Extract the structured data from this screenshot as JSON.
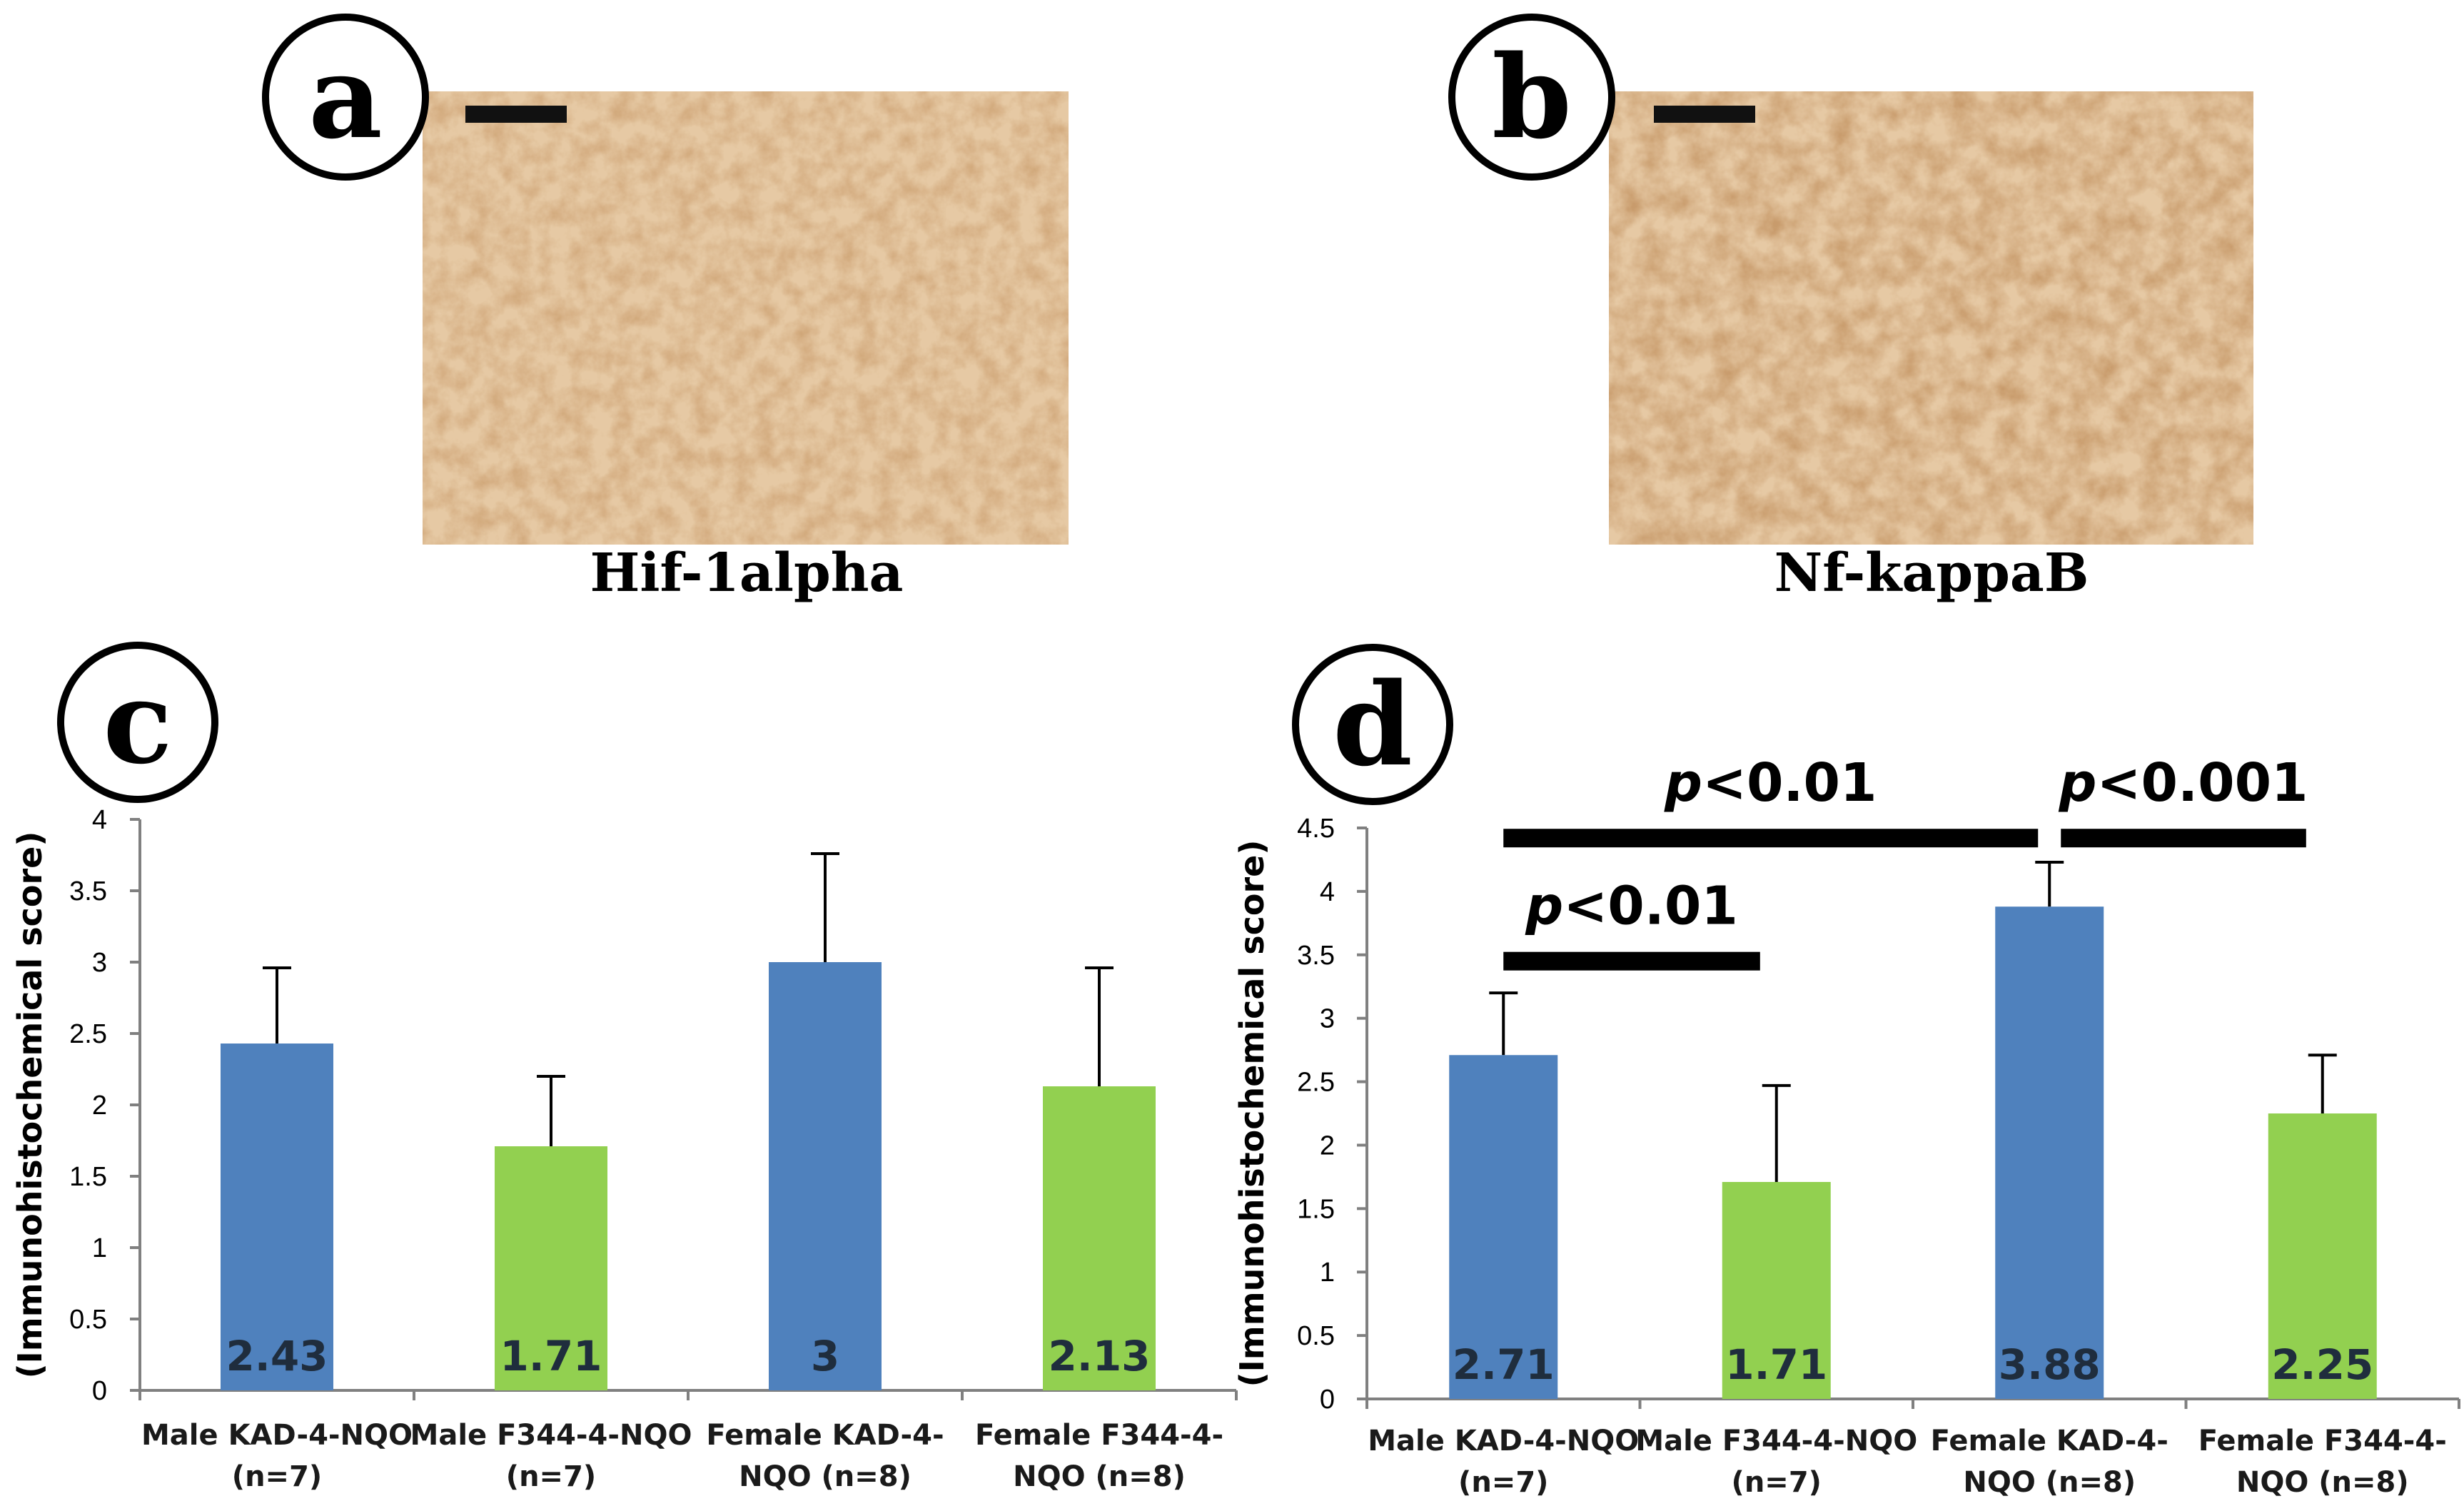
{
  "colors": {
    "kad_bar": "#4f81bd",
    "f344_bar": "#92d050",
    "axis": "#808080",
    "value_label": "#1f2d3d",
    "tissue_light": "#e6c9a4",
    "tissue_dark": "#9c5a2c"
  },
  "panel_a": {
    "letter": "a",
    "caption": "Hif-1alpha"
  },
  "panel_b": {
    "letter": "b",
    "caption": "Nf-kappaB"
  },
  "panel_c": {
    "letter": "c"
  },
  "panel_d": {
    "letter": "d"
  },
  "chart_data": [
    {
      "type": "bar",
      "panel": "c",
      "title": "",
      "xlabel": "",
      "ylabel": "(Immunohistochemical score)",
      "ylim": [
        0,
        4
      ],
      "yticks": [
        "0",
        "0.5",
        "1",
        "1.5",
        "2",
        "2.5",
        "3",
        "3.5",
        "4"
      ],
      "categories": [
        [
          "Male KAD-4-NQO",
          "(n=7)"
        ],
        [
          "Male F344-4-NQO",
          "(n=7)"
        ],
        [
          "Female KAD-4-",
          "NQO (n=8)"
        ],
        [
          "Female F344-4-",
          "NQO (n=8)"
        ]
      ],
      "values": [
        2.43,
        1.71,
        3,
        2.13
      ],
      "value_labels": [
        "2.43",
        "1.71",
        "3",
        "2.13"
      ],
      "errors": [
        0.53,
        0.49,
        0.76,
        0.83
      ],
      "bar_colors": [
        "#4f81bd",
        "#92d050",
        "#4f81bd",
        "#92d050"
      ],
      "significance": []
    },
    {
      "type": "bar",
      "panel": "d",
      "title": "",
      "xlabel": "",
      "ylabel": "(Immunohistochemical score)",
      "ylim": [
        0,
        4.5
      ],
      "yticks": [
        "0",
        "0.5",
        "1",
        "1.5",
        "2",
        "2.5",
        "3",
        "3.5",
        "4",
        "4.5"
      ],
      "categories": [
        [
          "Male KAD-4-NQO",
          "(n=7)"
        ],
        [
          "Male F344-4-NQO",
          "(n=7)"
        ],
        [
          "Female KAD-4-",
          "NQO (n=8)"
        ],
        [
          "Female F344-4-",
          "NQO (n=8)"
        ]
      ],
      "values": [
        2.71,
        1.71,
        3.88,
        2.25
      ],
      "value_labels": [
        "2.71",
        "1.71",
        "3.88",
        "2.25"
      ],
      "errors": [
        0.49,
        0.76,
        0.35,
        0.46
      ],
      "bar_colors": [
        "#4f81bd",
        "#92d050",
        "#4f81bd",
        "#92d050"
      ],
      "significance": [
        {
          "from": 0,
          "to": 2,
          "p": "p",
          "rest": "<0.01",
          "level": 4.42
        },
        {
          "from": 2,
          "to": 3,
          "p": "p",
          "rest": "<0.001",
          "level": 4.42
        },
        {
          "from": 0,
          "to": 1,
          "p": "p",
          "rest": "<0.01",
          "level": 3.45
        }
      ]
    }
  ]
}
